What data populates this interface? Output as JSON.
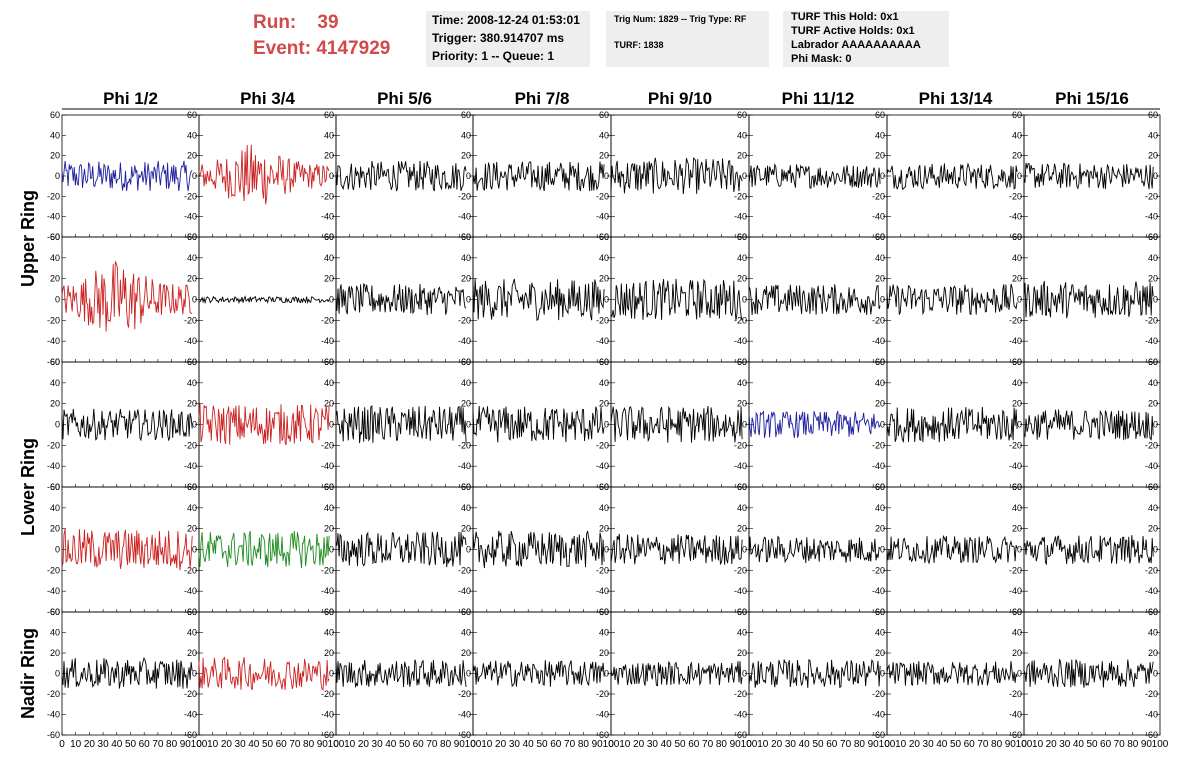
{
  "header": {
    "run_label": "Run:",
    "run_value": "39",
    "event_label": "Event:",
    "event_value": "4147929",
    "run_color": "#d04a4a"
  },
  "info_time": {
    "time": "Time: 2008-12-24 01:53:01",
    "trigger": "Trigger: 380.914707 ms",
    "priority": "Priority: 1 -- Queue: 1"
  },
  "info_trig": {
    "trig": "Trig Num: 1829 -- Trig Type: RF",
    "turf": "TURF: 1838"
  },
  "info_turf": {
    "this_hold": "TURF This Hold: 0x1",
    "active_holds": "TURF Active Holds: 0x1",
    "labrador": "Labrador AAAAAAAAAA",
    "phi_mask": "Phi Mask: 0"
  },
  "colors": {
    "panel_bg": "#eeeeee",
    "trace_default": "#000000",
    "trace_blue": "#1f1f9e",
    "trace_red": "#cc2222",
    "trace_green": "#1e8c1e"
  },
  "chart_data": {
    "type": "line",
    "title": "",
    "columns": [
      "Phi 1/2",
      "Phi 3/4",
      "Phi 5/6",
      "Phi 7/8",
      "Phi 9/10",
      "Phi 11/12",
      "Phi 13/14",
      "Phi 15/16"
    ],
    "ring_labels": [
      {
        "label": "Upper Ring",
        "rows": [
          0,
          1
        ]
      },
      {
        "label": "Lower Ring",
        "rows": [
          2,
          3
        ]
      },
      {
        "label": "Nadir Ring",
        "rows": [
          4
        ]
      }
    ],
    "xlim": [
      0,
      100
    ],
    "ylim": [
      -60,
      60
    ],
    "xticks": [
      0,
      10,
      20,
      30,
      40,
      50,
      60,
      70,
      80,
      90,
      100
    ],
    "xtick_labels": [
      "0",
      "10",
      "20",
      "30",
      "40",
      "50",
      "60",
      "70",
      "80",
      "90",
      "100"
    ],
    "yticks": [
      -60,
      -40,
      -20,
      0,
      20,
      40,
      60
    ],
    "ytick_labels": [
      "-60",
      "-40",
      "-20",
      "0",
      "20",
      "40",
      "60"
    ],
    "grid": false,
    "trace_colors": [
      [
        "blue",
        "red",
        "black",
        "black",
        "black",
        "black",
        "black",
        "black"
      ],
      [
        "red",
        "black",
        "black",
        "black",
        "black",
        "black",
        "black",
        "black"
      ],
      [
        "black",
        "red",
        "black",
        "black",
        "black",
        "blue",
        "black",
        "black"
      ],
      [
        "red",
        "green",
        "black",
        "black",
        "black",
        "black",
        "black",
        "black"
      ],
      [
        "black",
        "red",
        "black",
        "black",
        "black",
        "black",
        "black",
        "black"
      ]
    ],
    "trace_amplitude": [
      [
        15,
        25,
        15,
        15,
        18,
        12,
        13,
        13
      ],
      [
        30,
        3,
        15,
        20,
        20,
        15,
        15,
        18
      ],
      [
        15,
        20,
        18,
        18,
        18,
        13,
        17,
        15
      ],
      [
        20,
        18,
        17,
        18,
        15,
        13,
        13,
        14
      ],
      [
        15,
        16,
        14,
        13,
        12,
        14,
        12,
        14
      ]
    ],
    "samples_per_trace": 128
  }
}
